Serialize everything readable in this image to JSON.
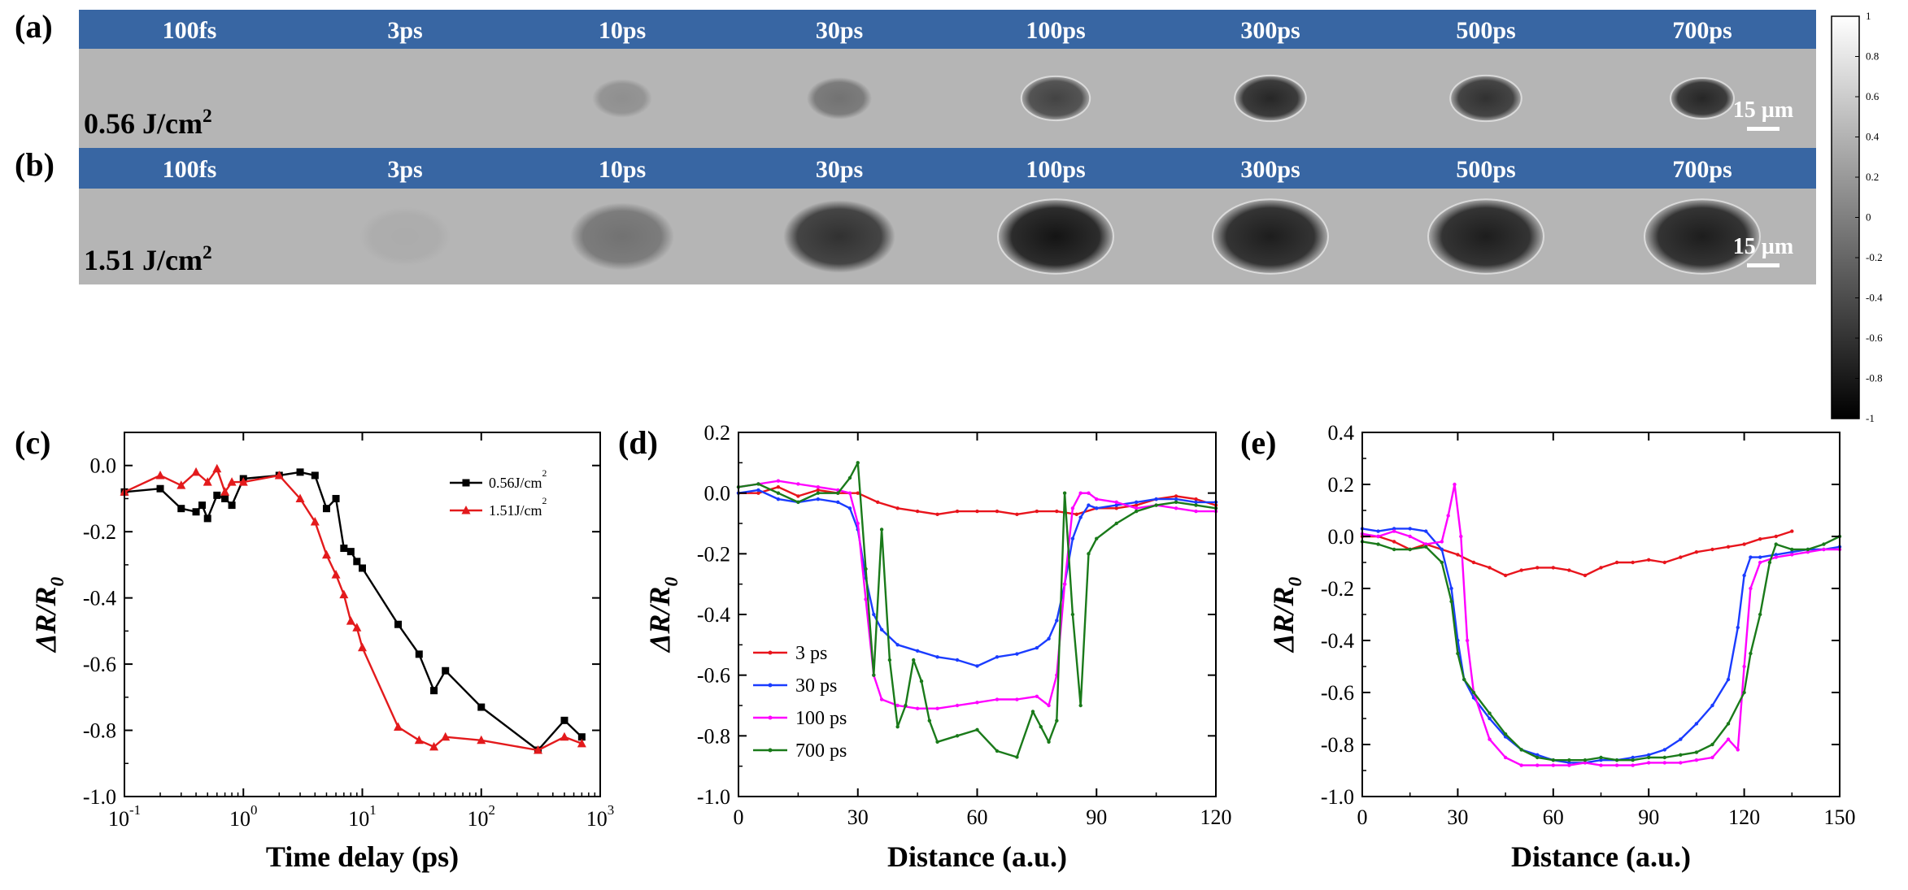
{
  "image_rows": [
    {
      "panel": "(a)",
      "fluence": "0.56 J/cm",
      "fluence_sup": "2",
      "scale_bar": "15 µm",
      "frames": [
        {
          "time": "100fs",
          "dR": 0.0,
          "diameter_um": 0
        },
        {
          "time": "3ps",
          "dR": -0.02,
          "diameter_um": 0
        },
        {
          "time": "10ps",
          "dR": -0.2,
          "diameter_um": 23
        },
        {
          "time": "30ps",
          "dR": -0.35,
          "diameter_um": 25
        },
        {
          "time": "100ps",
          "dR": -0.6,
          "diameter_um": 27
        },
        {
          "time": "300ps",
          "dR": -0.75,
          "diameter_um": 28
        },
        {
          "time": "500ps",
          "dR": -0.7,
          "diameter_um": 28
        },
        {
          "time": "700ps",
          "dR": -0.75,
          "diameter_um": 25
        }
      ]
    },
    {
      "panel": "(b)",
      "fluence": "1.51 J/cm",
      "fluence_sup": "2",
      "scale_bar": "15 µm",
      "frames": [
        {
          "time": "100fs",
          "dR": 0.0,
          "diameter_um": 0
        },
        {
          "time": "3ps",
          "dR": -0.05,
          "diameter_um": 35
        },
        {
          "time": "10ps",
          "dR": -0.35,
          "diameter_um": 40
        },
        {
          "time": "30ps",
          "dR": -0.7,
          "diameter_um": 43
        },
        {
          "time": "100ps",
          "dR": -0.85,
          "diameter_um": 45
        },
        {
          "time": "300ps",
          "dR": -0.8,
          "diameter_um": 45
        },
        {
          "time": "500ps",
          "dR": -0.8,
          "diameter_um": 45
        },
        {
          "time": "700ps",
          "dR": -0.8,
          "diameter_um": 45
        }
      ]
    }
  ],
  "colorbar": {
    "min": -1,
    "max": 1,
    "ticks": [
      "1",
      "0.8",
      "0.6",
      "0.4",
      "0.2",
      "0",
      "-0.2",
      "-0.4",
      "-0.6",
      "-0.8",
      "-1"
    ]
  },
  "chart_data": [
    {
      "panel": "(c)",
      "type": "line",
      "xscale": "log",
      "xlim": [
        0.1,
        1000
      ],
      "ylim": [
        -1.0,
        0.1
      ],
      "xlabel": "Time delay (ps)",
      "ylabel": "ΔR/R",
      "ylabel_sub": "0",
      "xticks": [
        0.1,
        1,
        10,
        100,
        1000
      ],
      "xtick_labels": [
        [
          "10",
          "-1"
        ],
        [
          "10",
          "0"
        ],
        [
          "10",
          "1"
        ],
        [
          "10",
          "2"
        ],
        [
          "10",
          "3"
        ]
      ],
      "yticks": [
        0.0,
        -0.2,
        -0.4,
        -0.6,
        -0.8,
        -1.0
      ],
      "ytick_labels": [
        "0.0",
        "-0.2",
        "-0.4",
        "-0.6",
        "-0.8",
        "-1.0"
      ],
      "legend_position": "top-right",
      "series": [
        {
          "name": "0.56J/cm",
          "name_sup": "2",
          "color": "#000000",
          "marker": "square",
          "x": [
            0.1,
            0.2,
            0.3,
            0.4,
            0.45,
            0.5,
            0.6,
            0.7,
            0.8,
            1.0,
            2.0,
            3.0,
            4.0,
            5.0,
            6.0,
            7.0,
            8.0,
            9.0,
            10,
            20,
            30,
            40,
            50,
            100,
            300,
            500,
            700
          ],
          "y": [
            -0.08,
            -0.07,
            -0.13,
            -0.14,
            -0.12,
            -0.16,
            -0.09,
            -0.1,
            -0.12,
            -0.04,
            -0.03,
            -0.02,
            -0.03,
            -0.13,
            -0.1,
            -0.25,
            -0.26,
            -0.29,
            -0.31,
            -0.48,
            -0.57,
            -0.68,
            -0.62,
            -0.73,
            -0.86,
            -0.77,
            -0.82
          ]
        },
        {
          "name": "1.51J/cm",
          "name_sup": "2",
          "color": "#e31a1c",
          "marker": "triangle",
          "x": [
            0.1,
            0.2,
            0.3,
            0.4,
            0.5,
            0.6,
            0.7,
            0.8,
            1.0,
            2.0,
            3.0,
            4.0,
            5.0,
            6.0,
            7.0,
            8.0,
            9.0,
            10,
            20,
            30,
            40,
            50,
            100,
            300,
            500,
            700
          ],
          "y": [
            -0.08,
            -0.03,
            -0.06,
            -0.02,
            -0.05,
            -0.01,
            -0.08,
            -0.05,
            -0.05,
            -0.03,
            -0.1,
            -0.17,
            -0.27,
            -0.33,
            -0.39,
            -0.47,
            -0.49,
            -0.55,
            -0.79,
            -0.83,
            -0.85,
            -0.82,
            -0.83,
            -0.86,
            -0.82,
            -0.84
          ]
        }
      ]
    },
    {
      "panel": "(d)",
      "type": "line",
      "xlim": [
        0,
        120
      ],
      "ylim": [
        -1.0,
        0.2
      ],
      "xlabel": "Distance (a.u.)",
      "ylabel": "ΔR/R",
      "ylabel_sub": "0",
      "xticks": [
        0,
        30,
        60,
        90,
        120
      ],
      "yticks": [
        0.2,
        0.0,
        -0.2,
        -0.4,
        -0.6,
        -0.8,
        -1.0
      ],
      "ytick_labels": [
        "0.2",
        "0.0",
        "-0.2",
        "-0.4",
        "-0.6",
        "-0.8",
        "-1.0"
      ],
      "legend_position": "bottom-left",
      "series": [
        {
          "name": "3 ps",
          "color": "#e8141c",
          "x": [
            0,
            5,
            10,
            15,
            20,
            25,
            30,
            35,
            40,
            45,
            50,
            55,
            60,
            65,
            70,
            75,
            80,
            85,
            90,
            95,
            100,
            105,
            110,
            115,
            120
          ],
          "y": [
            0.0,
            0.0,
            0.02,
            -0.01,
            0.01,
            0.0,
            0.0,
            -0.03,
            -0.05,
            -0.06,
            -0.07,
            -0.06,
            -0.06,
            -0.06,
            -0.07,
            -0.06,
            -0.06,
            -0.07,
            -0.05,
            -0.05,
            -0.04,
            -0.02,
            -0.01,
            -0.02,
            -0.04
          ]
        },
        {
          "name": "30 ps",
          "color": "#1a3cff",
          "x": [
            0,
            5,
            10,
            15,
            20,
            25,
            28,
            30,
            32,
            34,
            36,
            40,
            45,
            50,
            55,
            60,
            65,
            70,
            75,
            78,
            80,
            82,
            84,
            86,
            88,
            90,
            95,
            100,
            105,
            110,
            115,
            120
          ],
          "y": [
            0.0,
            0.01,
            -0.02,
            -0.03,
            -0.02,
            -0.03,
            -0.05,
            -0.12,
            -0.28,
            -0.4,
            -0.45,
            -0.5,
            -0.52,
            -0.54,
            -0.55,
            -0.57,
            -0.54,
            -0.53,
            -0.51,
            -0.48,
            -0.42,
            -0.3,
            -0.15,
            -0.08,
            -0.04,
            -0.05,
            -0.04,
            -0.03,
            -0.02,
            -0.02,
            -0.03,
            -0.03
          ]
        },
        {
          "name": "100 ps",
          "color": "#ff00ff",
          "x": [
            0,
            5,
            10,
            15,
            20,
            25,
            28,
            30,
            32,
            34,
            36,
            40,
            45,
            50,
            55,
            60,
            65,
            70,
            75,
            78,
            80,
            82,
            84,
            86,
            88,
            90,
            95,
            100,
            105,
            110,
            115,
            120
          ],
          "y": [
            0.02,
            0.03,
            0.04,
            0.03,
            0.02,
            0.01,
            0.0,
            -0.1,
            -0.35,
            -0.6,
            -0.68,
            -0.7,
            -0.71,
            -0.71,
            -0.7,
            -0.69,
            -0.68,
            -0.68,
            -0.67,
            -0.7,
            -0.6,
            -0.3,
            -0.05,
            0.0,
            0.0,
            -0.02,
            -0.03,
            -0.05,
            -0.04,
            -0.05,
            -0.06,
            -0.06
          ]
        },
        {
          "name": "700 ps",
          "color": "#1a7a1a",
          "x": [
            0,
            5,
            10,
            15,
            20,
            25,
            28,
            30,
            32,
            34,
            36,
            38,
            40,
            42,
            44,
            46,
            48,
            50,
            55,
            60,
            65,
            70,
            74,
            76,
            78,
            80,
            82,
            84,
            86,
            88,
            90,
            95,
            100,
            105,
            110,
            115,
            120
          ],
          "y": [
            0.02,
            0.03,
            0.0,
            -0.03,
            0.0,
            0.0,
            0.05,
            0.1,
            -0.25,
            -0.6,
            -0.12,
            -0.55,
            -0.77,
            -0.7,
            -0.55,
            -0.62,
            -0.75,
            -0.82,
            -0.8,
            -0.78,
            -0.85,
            -0.87,
            -0.72,
            -0.77,
            -0.82,
            -0.75,
            0.0,
            -0.4,
            -0.7,
            -0.2,
            -0.15,
            -0.1,
            -0.06,
            -0.04,
            -0.03,
            -0.04,
            -0.05
          ]
        }
      ]
    },
    {
      "panel": "(e)",
      "type": "line",
      "xlim": [
        0,
        150
      ],
      "ylim": [
        -1.0,
        0.4
      ],
      "xlabel": "Distance (a.u.)",
      "ylabel": "ΔR/R",
      "ylabel_sub": "0",
      "xticks": [
        0,
        30,
        60,
        90,
        120,
        150
      ],
      "yticks": [
        0.4,
        0.2,
        0.0,
        -0.2,
        -0.4,
        -0.6,
        -0.8,
        -1.0
      ],
      "ytick_labels": [
        "0.4",
        "0.2",
        "0.0",
        "-0.2",
        "-0.4",
        "-0.6",
        "-0.8",
        "-1.0"
      ],
      "series": [
        {
          "color": "#e8141c",
          "x": [
            0,
            5,
            10,
            15,
            20,
            25,
            30,
            35,
            40,
            45,
            50,
            55,
            60,
            65,
            70,
            75,
            80,
            85,
            90,
            95,
            100,
            105,
            110,
            115,
            120,
            125,
            130,
            135
          ],
          "y": [
            0.0,
            0.0,
            -0.02,
            -0.05,
            -0.03,
            -0.05,
            -0.07,
            -0.1,
            -0.12,
            -0.15,
            -0.13,
            -0.12,
            -0.12,
            -0.13,
            -0.15,
            -0.12,
            -0.1,
            -0.1,
            -0.09,
            -0.1,
            -0.08,
            -0.06,
            -0.05,
            -0.04,
            -0.03,
            -0.01,
            0.0,
            0.02
          ]
        },
        {
          "color": "#1a3cff",
          "x": [
            0,
            5,
            10,
            15,
            20,
            25,
            28,
            30,
            32,
            35,
            40,
            45,
            50,
            55,
            60,
            65,
            70,
            75,
            80,
            85,
            90,
            95,
            100,
            105,
            110,
            115,
            118,
            120,
            122,
            125,
            130,
            135,
            140,
            145,
            150
          ],
          "y": [
            0.03,
            0.02,
            0.03,
            0.03,
            0.02,
            -0.05,
            -0.2,
            -0.4,
            -0.55,
            -0.62,
            -0.7,
            -0.77,
            -0.82,
            -0.84,
            -0.86,
            -0.87,
            -0.87,
            -0.86,
            -0.86,
            -0.85,
            -0.84,
            -0.82,
            -0.78,
            -0.72,
            -0.65,
            -0.55,
            -0.35,
            -0.15,
            -0.08,
            -0.08,
            -0.07,
            -0.06,
            -0.05,
            -0.05,
            -0.04
          ]
        },
        {
          "color": "#ff00ff",
          "x": [
            0,
            5,
            10,
            15,
            20,
            25,
            27,
            29,
            31,
            33,
            35,
            40,
            45,
            50,
            55,
            60,
            65,
            70,
            75,
            80,
            85,
            90,
            95,
            100,
            105,
            110,
            115,
            118,
            120,
            122,
            125,
            130,
            135,
            140,
            145,
            150
          ],
          "y": [
            0.01,
            0.0,
            0.02,
            0.0,
            -0.03,
            -0.02,
            0.08,
            0.2,
            0.0,
            -0.4,
            -0.6,
            -0.78,
            -0.85,
            -0.88,
            -0.88,
            -0.88,
            -0.88,
            -0.87,
            -0.88,
            -0.88,
            -0.88,
            -0.87,
            -0.87,
            -0.87,
            -0.86,
            -0.85,
            -0.78,
            -0.82,
            -0.5,
            -0.2,
            -0.1,
            -0.08,
            -0.07,
            -0.06,
            -0.05,
            -0.05
          ]
        },
        {
          "color": "#1a7a1a",
          "x": [
            0,
            5,
            10,
            15,
            20,
            25,
            28,
            30,
            32,
            35,
            40,
            45,
            50,
            55,
            60,
            65,
            70,
            75,
            80,
            85,
            90,
            95,
            100,
            105,
            110,
            115,
            120,
            122,
            125,
            128,
            130,
            135,
            140,
            145,
            150
          ],
          "y": [
            -0.02,
            -0.03,
            -0.05,
            -0.05,
            -0.04,
            -0.1,
            -0.25,
            -0.45,
            -0.55,
            -0.6,
            -0.68,
            -0.76,
            -0.82,
            -0.85,
            -0.86,
            -0.86,
            -0.86,
            -0.85,
            -0.86,
            -0.86,
            -0.85,
            -0.85,
            -0.84,
            -0.83,
            -0.8,
            -0.72,
            -0.6,
            -0.45,
            -0.3,
            -0.1,
            -0.03,
            -0.05,
            -0.05,
            -0.03,
            0.0
          ]
        }
      ]
    }
  ]
}
